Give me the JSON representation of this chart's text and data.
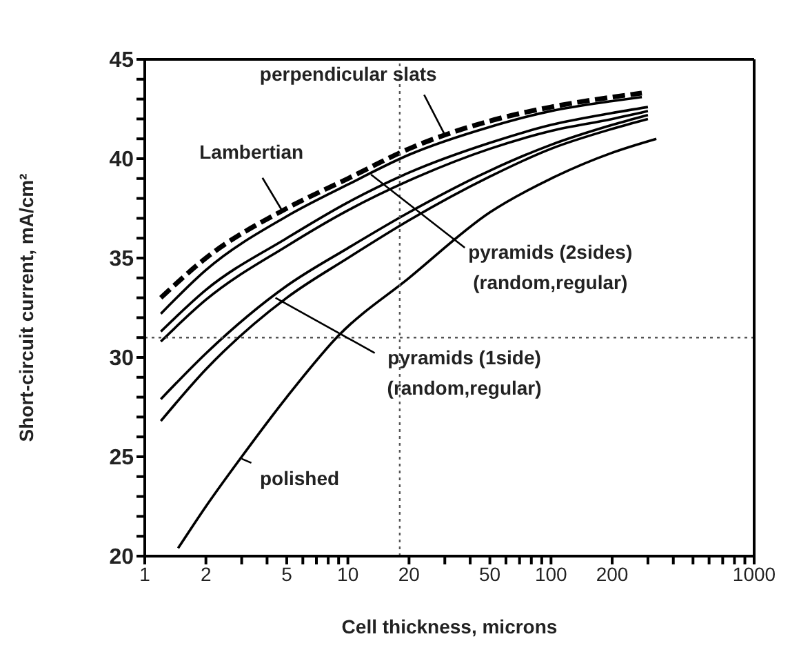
{
  "chart_data": {
    "type": "line",
    "xlabel": "Cell thickness, microns",
    "ylabel": "Short-circuit current, mA/cm²",
    "log": "x",
    "marker": "none",
    "xlim": [
      1,
      1000
    ],
    "ylim": [
      20,
      45
    ],
    "xticks": [
      1,
      2,
      {
        "value": 3,
        "label": null
      },
      {
        "value": 4,
        "label": null
      },
      5,
      {
        "value": 6,
        "label": null
      },
      {
        "value": 7,
        "label": null
      },
      {
        "value": 8,
        "label": null
      },
      {
        "value": 9,
        "label": null
      },
      10,
      20,
      {
        "value": 30,
        "label": null
      },
      {
        "value": 40,
        "label": null
      },
      50,
      {
        "value": 60,
        "label": null
      },
      {
        "value": 70,
        "label": null
      },
      {
        "value": 80,
        "label": null
      },
      {
        "value": 90,
        "label": null
      },
      100,
      200,
      {
        "value": 300,
        "label": null
      },
      {
        "value": 400,
        "label": null
      },
      {
        "value": 500,
        "label": null
      },
      {
        "value": 600,
        "label": null
      },
      {
        "value": 700,
        "label": null
      },
      {
        "value": 800,
        "label": null
      },
      {
        "value": 900,
        "label": null
      },
      1000
    ],
    "yticks": [
      20,
      {
        "value": 21,
        "label": null
      },
      {
        "value": 22,
        "label": null
      },
      {
        "value": 23,
        "label": null
      },
      {
        "value": 24,
        "label": null
      },
      25,
      {
        "value": 26,
        "label": null
      },
      {
        "value": 27,
        "label": null
      },
      {
        "value": 28,
        "label": null
      },
      {
        "value": 29,
        "label": null
      },
      30,
      {
        "value": 31,
        "label": null
      },
      {
        "value": 32,
        "label": null
      },
      {
        "value": 33,
        "label": null
      },
      {
        "value": 34,
        "label": null
      },
      35,
      {
        "value": 36,
        "label": null
      },
      {
        "value": 37,
        "label": null
      },
      {
        "value": 38,
        "label": null
      },
      {
        "value": 39,
        "label": null
      },
      40,
      {
        "value": 41,
        "label": null
      },
      {
        "value": 42,
        "label": null
      },
      {
        "value": 43,
        "label": null
      },
      {
        "value": 44,
        "label": null
      },
      45
    ],
    "series": [
      {
        "color": "#000000",
        "line_style": "dashed",
        "x": [
          1.2,
          2,
          5,
          10,
          20,
          50,
          100,
          200,
          280
        ],
        "values": [
          33.0,
          35.0,
          37.5,
          39.0,
          40.5,
          41.9,
          42.6,
          43.1,
          43.3
        ]
      },
      {
        "color": "#000000",
        "line_style": "solid",
        "x": [
          1.2,
          2,
          5,
          10,
          20,
          50,
          100,
          200,
          280
        ],
        "values": [
          32.2,
          34.4,
          37.1,
          38.7,
          40.2,
          41.6,
          42.4,
          42.9,
          43.1
        ]
      },
      {
        "color": "#000000",
        "line_style": "solid",
        "x": [
          1.2,
          2,
          5,
          10,
          20,
          50,
          100,
          200,
          300
        ],
        "values": [
          31.3,
          33.4,
          36.0,
          37.8,
          39.3,
          40.8,
          41.7,
          42.3,
          42.6
        ]
      },
      {
        "color": "#000000",
        "line_style": "solid",
        "x": [
          1.2,
          2,
          5,
          10,
          20,
          50,
          100,
          200,
          300
        ],
        "values": [
          30.8,
          32.9,
          35.6,
          37.4,
          38.9,
          40.5,
          41.4,
          42.0,
          42.4
        ]
      },
      {
        "color": "#000000",
        "line_style": "solid",
        "x": [
          1.2,
          2,
          5,
          10,
          20,
          50,
          100,
          200,
          300
        ],
        "values": [
          27.9,
          30.2,
          33.6,
          35.5,
          37.3,
          39.4,
          40.7,
          41.7,
          42.2
        ]
      },
      {
        "color": "#000000",
        "line_style": "solid",
        "x": [
          1.2,
          2,
          5,
          10,
          20,
          50,
          100,
          200,
          300
        ],
        "values": [
          26.8,
          29.4,
          33.0,
          35.0,
          36.9,
          39.1,
          40.5,
          41.5,
          42.0
        ]
      },
      {
        "color": "#000000",
        "line_style": "solid",
        "x": [
          1.46,
          2,
          3,
          5,
          9,
          20,
          50,
          100,
          200,
          330
        ],
        "values": [
          20.4,
          22.5,
          25.0,
          28.0,
          31.1,
          34.0,
          37.3,
          39.0,
          40.3,
          41.0
        ]
      }
    ],
    "ref_lines": [
      {
        "axis": "x",
        "value": 18,
        "color": "#555555",
        "line_style": "dotted"
      },
      {
        "axis": "y",
        "value": 31,
        "color": "#555555",
        "line_style": "dotted"
      }
    ],
    "annotations": [
      {
        "text": "perpendicular slats",
        "x": 30,
        "y": 41.2
      },
      {
        "text": "Lambertian",
        "x": 4.8,
        "y": 37.3
      },
      {
        "text": "pyramids (2sides)\n(random,regular)",
        "x": 13,
        "y": 39.2
      },
      {
        "text": "pyramids (1side)\n(random,regular)",
        "x": 4.4,
        "y": 33.0
      },
      {
        "text": "polished",
        "x": 3,
        "y": 24.9
      }
    ]
  }
}
